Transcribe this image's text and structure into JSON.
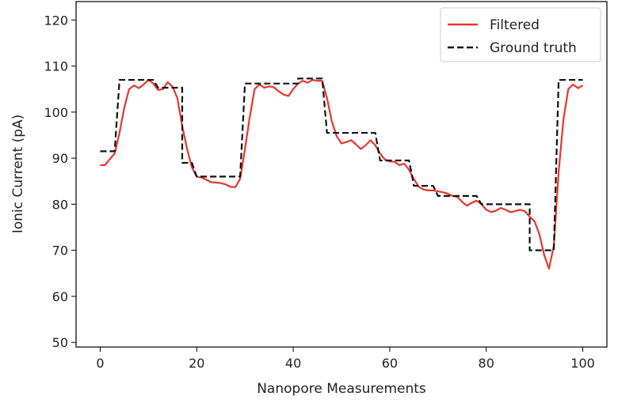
{
  "chart_data": {
    "type": "line",
    "title": "",
    "xlabel": "Nanopore Measurements",
    "ylabel": "Ionic Current (pA)",
    "xlim": [
      -5,
      105
    ],
    "ylim": [
      49,
      124
    ],
    "x_ticks": [
      0,
      20,
      40,
      60,
      80,
      100
    ],
    "y_ticks": [
      50,
      60,
      70,
      80,
      90,
      100,
      110,
      120
    ],
    "grid": false,
    "legend_position": "top-right",
    "series": [
      {
        "name": "Filtered",
        "color": "#e8362f",
        "style": "solid",
        "points": [
          [
            0,
            88.5
          ],
          [
            1,
            88.5
          ],
          [
            2,
            89.8
          ],
          [
            3,
            91.0
          ],
          [
            4,
            95.5
          ],
          [
            5,
            101.0
          ],
          [
            6,
            105.0
          ],
          [
            7,
            105.8
          ],
          [
            8,
            105.2
          ],
          [
            9,
            106.0
          ],
          [
            10,
            107.0
          ],
          [
            11,
            106.2
          ],
          [
            12,
            104.8
          ],
          [
            13,
            105.0
          ],
          [
            14,
            106.5
          ],
          [
            15,
            105.5
          ],
          [
            16,
            103.0
          ],
          [
            17,
            97.0
          ],
          [
            18,
            92.0
          ],
          [
            19,
            88.0
          ],
          [
            20,
            86.0
          ],
          [
            21,
            85.8
          ],
          [
            22,
            85.3
          ],
          [
            23,
            84.8
          ],
          [
            24,
            84.7
          ],
          [
            25,
            84.6
          ],
          [
            26,
            84.3
          ],
          [
            27,
            83.8
          ],
          [
            28,
            83.7
          ],
          [
            29,
            85.5
          ],
          [
            30,
            92.0
          ],
          [
            31,
            99.0
          ],
          [
            32,
            105.0
          ],
          [
            33,
            106.0
          ],
          [
            34,
            105.3
          ],
          [
            35,
            105.6
          ],
          [
            36,
            105.4
          ],
          [
            37,
            104.5
          ],
          [
            38,
            103.8
          ],
          [
            39,
            103.5
          ],
          [
            40,
            105.0
          ],
          [
            41,
            106.2
          ],
          [
            42,
            106.8
          ],
          [
            43,
            106.4
          ],
          [
            44,
            107.0
          ],
          [
            45,
            106.8
          ],
          [
            46,
            106.8
          ],
          [
            47,
            103.0
          ],
          [
            48,
            98.0
          ],
          [
            49,
            94.8
          ],
          [
            50,
            93.2
          ],
          [
            51,
            93.5
          ],
          [
            52,
            93.9
          ],
          [
            53,
            93.0
          ],
          [
            54,
            92.0
          ],
          [
            55,
            92.8
          ],
          [
            56,
            93.9
          ],
          [
            57,
            92.8
          ],
          [
            58,
            91.0
          ],
          [
            59,
            89.7
          ],
          [
            60,
            89.3
          ],
          [
            61,
            89.2
          ],
          [
            62,
            88.5
          ],
          [
            63,
            88.8
          ],
          [
            64,
            87.5
          ],
          [
            65,
            85.5
          ],
          [
            66,
            83.8
          ],
          [
            67,
            83.2
          ],
          [
            68,
            83.0
          ],
          [
            69,
            83.0
          ],
          [
            70,
            82.8
          ],
          [
            71,
            82.6
          ],
          [
            72,
            82.3
          ],
          [
            73,
            81.8
          ],
          [
            74,
            81.6
          ],
          [
            75,
            80.5
          ],
          [
            76,
            79.7
          ],
          [
            77,
            80.3
          ],
          [
            78,
            80.8
          ],
          [
            79,
            80.0
          ],
          [
            80,
            78.8
          ],
          [
            81,
            78.3
          ],
          [
            82,
            78.6
          ],
          [
            83,
            79.2
          ],
          [
            84,
            78.8
          ],
          [
            85,
            78.3
          ],
          [
            86,
            78.5
          ],
          [
            87,
            78.8
          ],
          [
            88,
            78.5
          ],
          [
            89,
            77.3
          ],
          [
            90,
            76.3
          ],
          [
            91,
            73.5
          ],
          [
            92,
            69.0
          ],
          [
            93,
            66.0
          ],
          [
            94,
            71.0
          ],
          [
            95,
            87.0
          ],
          [
            96,
            98.5
          ],
          [
            97,
            105.0
          ],
          [
            98,
            106.0
          ],
          [
            99,
            105.2
          ],
          [
            100,
            105.8
          ]
        ]
      },
      {
        "name": "Ground truth",
        "color": "#111111",
        "style": "dashed",
        "points": [
          [
            0,
            91.5
          ],
          [
            3,
            91.5
          ],
          [
            3,
            91.5
          ],
          [
            4,
            107.0
          ],
          [
            10,
            107.0
          ],
          [
            11,
            107.0
          ],
          [
            12,
            105.3
          ],
          [
            16,
            105.3
          ],
          [
            17,
            105.3
          ],
          [
            17,
            89.0
          ],
          [
            19,
            89.0
          ],
          [
            20,
            86.0
          ],
          [
            29,
            86.0
          ],
          [
            30,
            106.2
          ],
          [
            41,
            106.2
          ],
          [
            41,
            107.3
          ],
          [
            46,
            107.3
          ],
          [
            47,
            95.5
          ],
          [
            57,
            95.5
          ],
          [
            58,
            89.5
          ],
          [
            64,
            89.5
          ],
          [
            65,
            84.0
          ],
          [
            69,
            84.0
          ],
          [
            70,
            81.8
          ],
          [
            78,
            81.8
          ],
          [
            79,
            80.0
          ],
          [
            89,
            80.0
          ],
          [
            89,
            70.0
          ],
          [
            93,
            70.0
          ],
          [
            94,
            70.0
          ],
          [
            95,
            107.0
          ],
          [
            100,
            107.0
          ]
        ]
      }
    ]
  }
}
